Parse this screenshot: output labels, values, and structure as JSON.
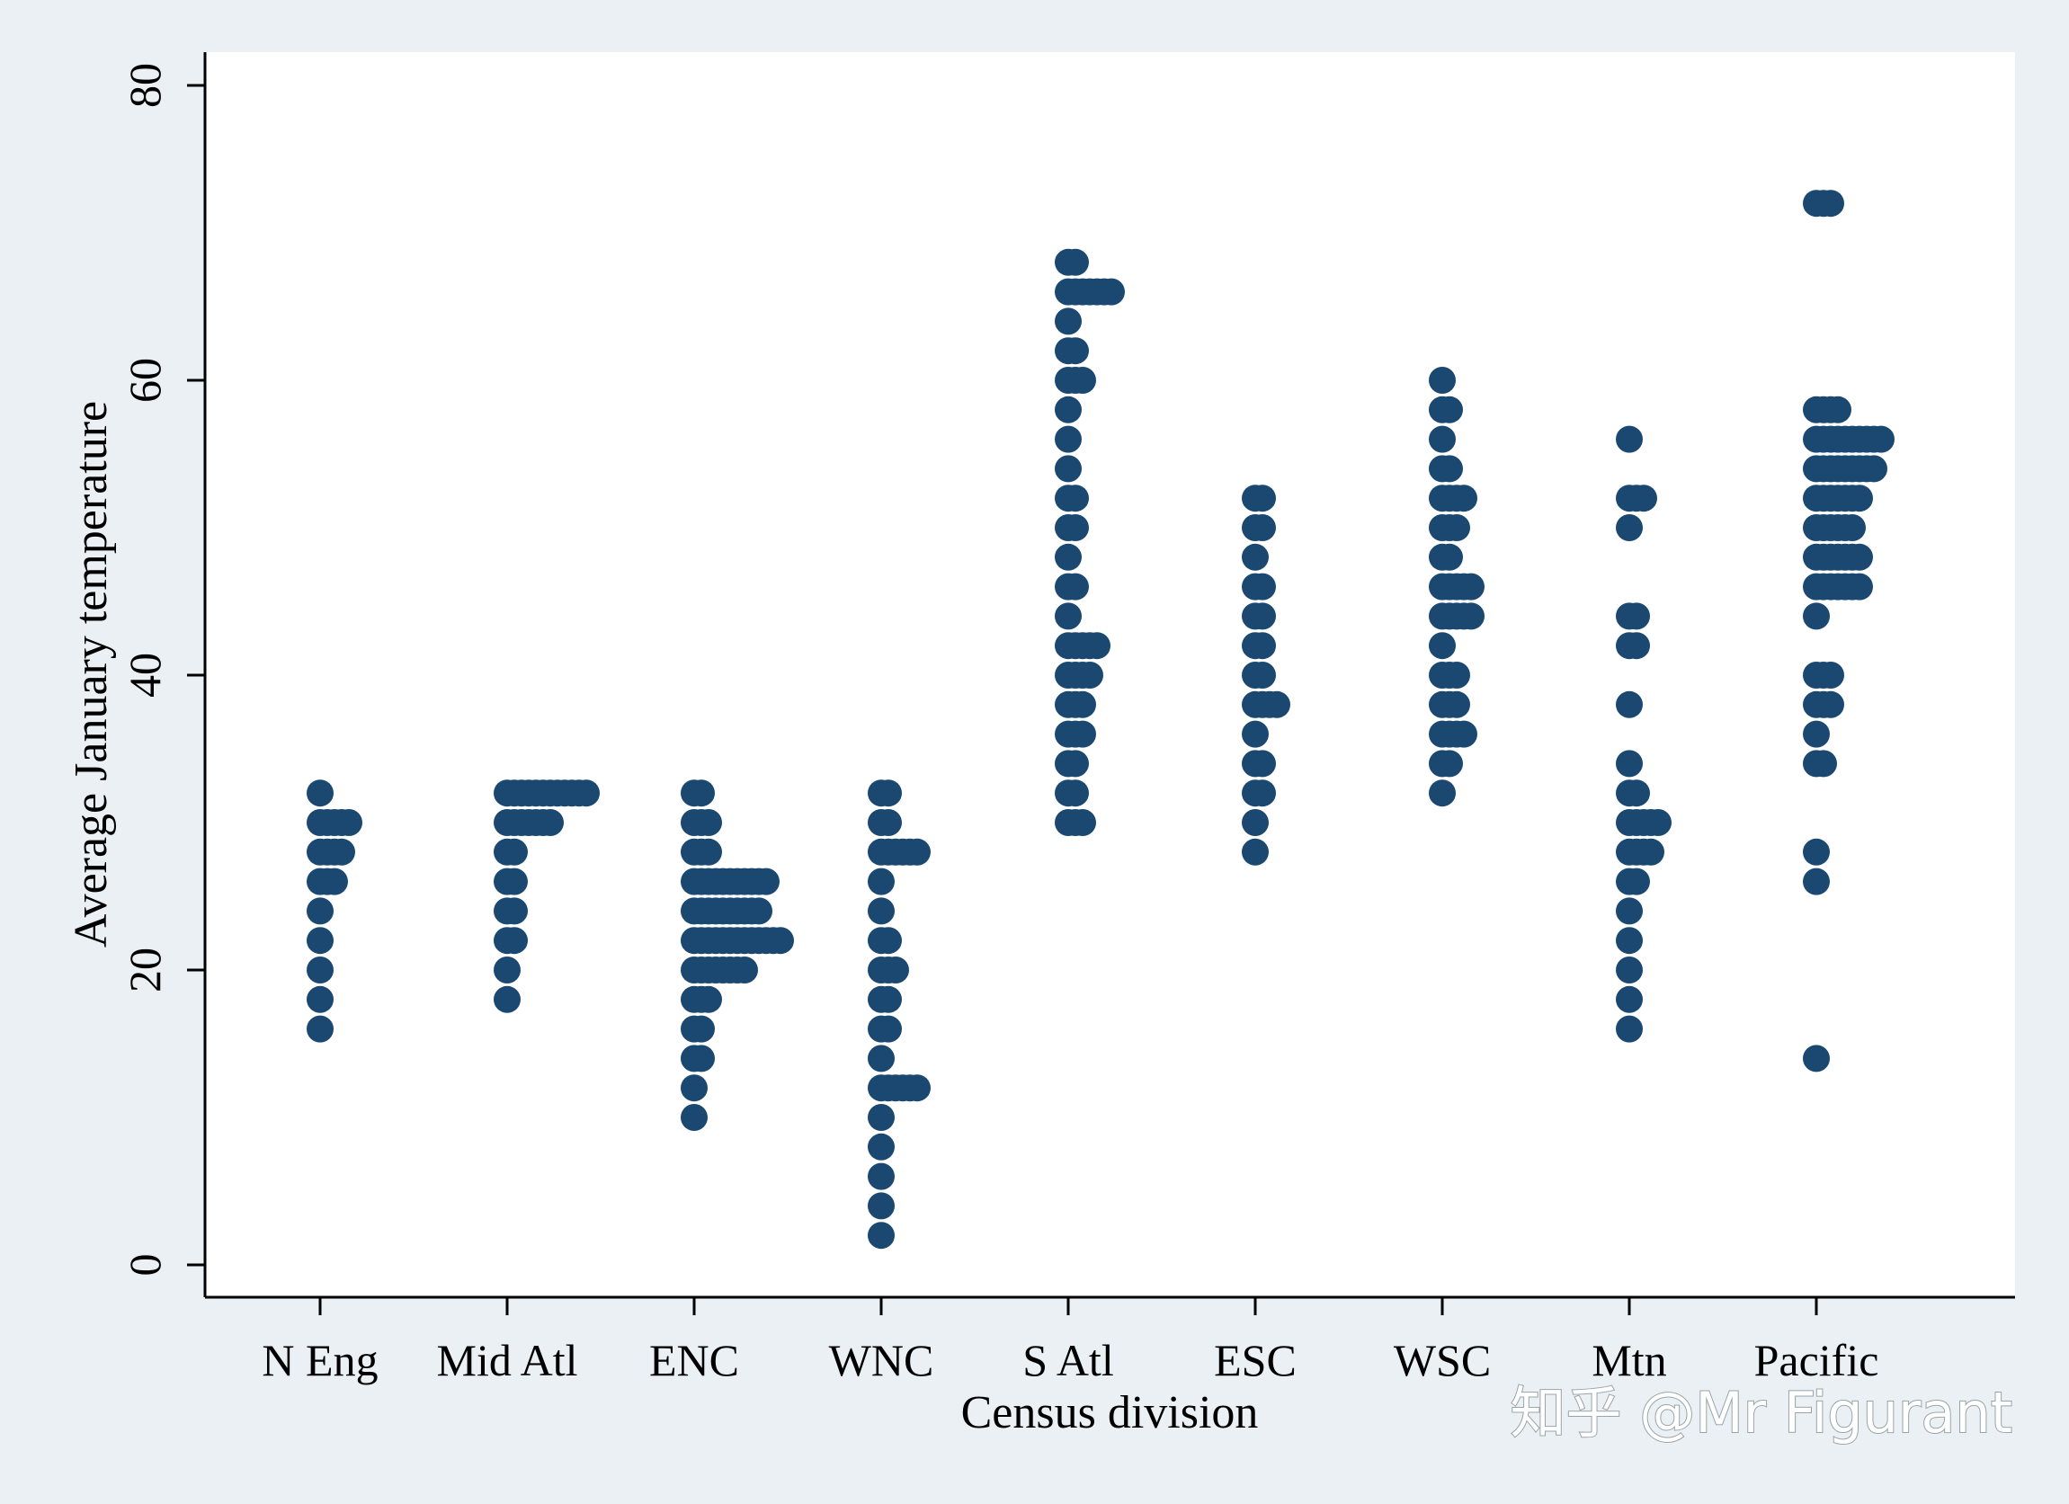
{
  "watermark": "知乎 @Mr Figurant",
  "colors": {
    "page_bg": "#eaf0f3",
    "plot_bg": "#ffffff",
    "marker": "#1b4870",
    "axis": "#000000"
  },
  "chart_data": {
    "type": "scatter",
    "subtype": "dot plot",
    "xlabel": "Census division",
    "ylabel": "Average January temperature",
    "categories": [
      "N Eng",
      "Mid Atl",
      "ENC",
      "WNC",
      "S Atl",
      "ESC",
      "WSC",
      "Mtn",
      "Pacific"
    ],
    "ylim": [
      0,
      80
    ],
    "yticks": [
      0,
      20,
      40,
      60,
      80
    ],
    "grid": false,
    "series": [
      {
        "category": "N Eng",
        "values": [
          16,
          18,
          20,
          22,
          24,
          26,
          26,
          26,
          28,
          28,
          28,
          28,
          30,
          30,
          30,
          30,
          30,
          32
        ]
      },
      {
        "category": "Mid Atl",
        "values": [
          18,
          20,
          22,
          22,
          24,
          24,
          26,
          26,
          28,
          28,
          30,
          30,
          30,
          30,
          30,
          30,
          30,
          32,
          32,
          32,
          32,
          32,
          32,
          32,
          32,
          32,
          32,
          32,
          32
        ]
      },
      {
        "category": "ENC",
        "values": [
          10,
          12,
          14,
          14,
          16,
          16,
          18,
          18,
          18,
          20,
          20,
          20,
          20,
          20,
          20,
          20,
          20,
          22,
          22,
          22,
          22,
          22,
          22,
          22,
          22,
          22,
          22,
          22,
          22,
          22,
          24,
          24,
          24,
          24,
          24,
          24,
          24,
          24,
          24,
          24,
          26,
          26,
          26,
          26,
          26,
          26,
          26,
          26,
          26,
          26,
          26,
          28,
          28,
          28,
          30,
          30,
          30,
          32,
          32
        ]
      },
      {
        "category": "WNC",
        "values": [
          2,
          4,
          6,
          8,
          10,
          12,
          12,
          12,
          12,
          12,
          12,
          14,
          16,
          16,
          18,
          18,
          20,
          20,
          20,
          22,
          22,
          24,
          26,
          28,
          28,
          28,
          28,
          28,
          28,
          30,
          30,
          32,
          32
        ]
      },
      {
        "category": "S Atl",
        "values": [
          30,
          30,
          30,
          32,
          32,
          34,
          34,
          36,
          36,
          36,
          38,
          38,
          38,
          40,
          40,
          40,
          40,
          42,
          42,
          42,
          42,
          42,
          44,
          46,
          46,
          48,
          50,
          50,
          52,
          52,
          54,
          56,
          58,
          60,
          60,
          60,
          62,
          62,
          64,
          66,
          66,
          66,
          66,
          66,
          66,
          66,
          68,
          68
        ]
      },
      {
        "category": "ESC",
        "values": [
          28,
          30,
          32,
          32,
          34,
          34,
          36,
          38,
          38,
          38,
          38,
          40,
          40,
          42,
          42,
          44,
          44,
          46,
          46,
          48,
          50,
          50,
          52,
          52
        ]
      },
      {
        "category": "WSC",
        "values": [
          32,
          34,
          34,
          36,
          36,
          36,
          36,
          38,
          38,
          38,
          40,
          40,
          40,
          42,
          44,
          44,
          44,
          44,
          44,
          46,
          46,
          46,
          46,
          46,
          48,
          48,
          50,
          50,
          50,
          52,
          52,
          52,
          52,
          54,
          54,
          56,
          58,
          58,
          60
        ]
      },
      {
        "category": "Mtn",
        "values": [
          16,
          18,
          20,
          22,
          24,
          26,
          26,
          28,
          28,
          28,
          28,
          30,
          30,
          30,
          30,
          30,
          32,
          32,
          34,
          38,
          42,
          42,
          44,
          44,
          50,
          52,
          52,
          52,
          56
        ]
      },
      {
        "category": "Pacific",
        "values": [
          14,
          26,
          28,
          34,
          34,
          36,
          38,
          38,
          38,
          40,
          40,
          40,
          44,
          46,
          46,
          46,
          46,
          46,
          46,
          46,
          48,
          48,
          48,
          48,
          48,
          48,
          48,
          50,
          50,
          50,
          50,
          50,
          50,
          52,
          52,
          52,
          52,
          52,
          52,
          52,
          54,
          54,
          54,
          54,
          54,
          54,
          54,
          54,
          54,
          56,
          56,
          56,
          56,
          56,
          56,
          56,
          56,
          56,
          56,
          58,
          58,
          58,
          58,
          72,
          72,
          72
        ]
      }
    ]
  }
}
